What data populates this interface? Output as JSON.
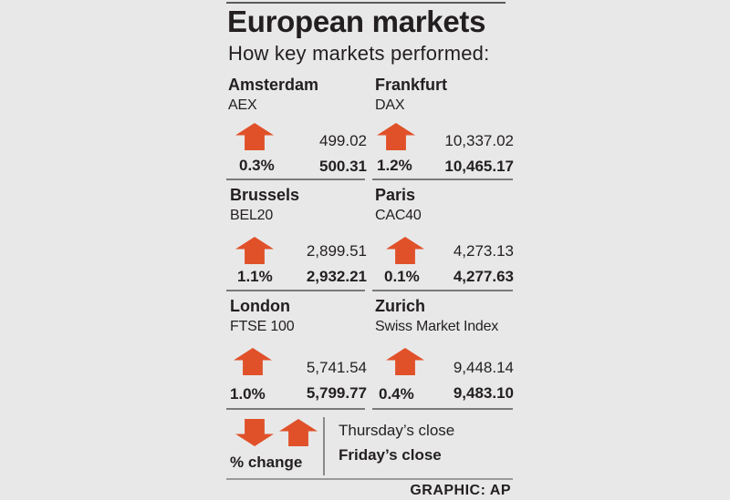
{
  "header": {
    "title": "European markets",
    "subtitle": "How key markets performed:"
  },
  "markets": [
    {
      "city": "Amsterdam",
      "index": "AEX",
      "direction": "up",
      "pct_change": "0.3%",
      "thursday_close": "499.02",
      "friday_close": "500.31"
    },
    {
      "city": "Frankfurt",
      "index": "DAX",
      "direction": "up",
      "pct_change": "1.2%",
      "thursday_close": "10,337.02",
      "friday_close": "10,465.17"
    },
    {
      "city": "Brussels",
      "index": "BEL20",
      "direction": "up",
      "pct_change": "1.1%",
      "thursday_close": "2,899.51",
      "friday_close": "2,932.21"
    },
    {
      "city": "Paris",
      "index": "CAC40",
      "direction": "up",
      "pct_change": "0.1%",
      "thursday_close": "4,273.13",
      "friday_close": "4,277.63"
    },
    {
      "city": "London",
      "index": "FTSE 100",
      "direction": "up",
      "pct_change": "1.0%",
      "thursday_close": "5,741.54",
      "friday_close": "5,799.77"
    },
    {
      "city": "Zurich",
      "index": "Swiss Market Index",
      "direction": "up",
      "pct_change": "0.4%",
      "thursday_close": "9,448.14",
      "friday_close": "9,483.10"
    }
  ],
  "legend": {
    "pct_label": "% change",
    "thursday_label": "Thursday’s close",
    "friday_label": "Friday’s close"
  },
  "credit": "GRAPHIC: AP",
  "colors": {
    "arrow": "#e0512a",
    "background": "#e8e8e8",
    "text": "#231f20"
  }
}
